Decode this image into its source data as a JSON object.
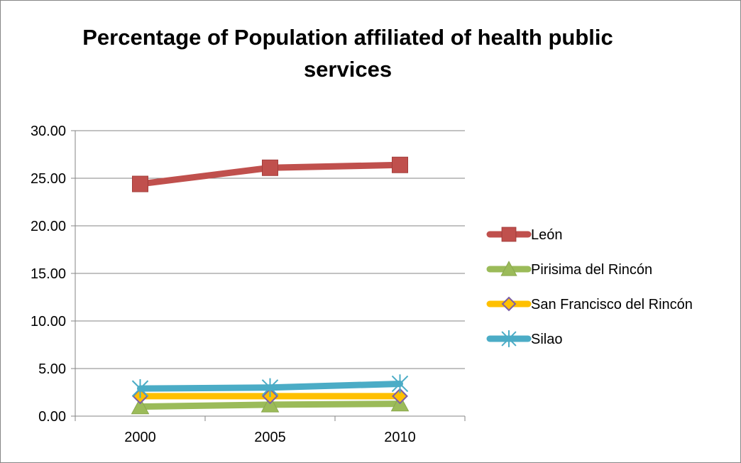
{
  "chart_data": {
    "type": "line",
    "title": "Percentage of Population affiliated of health public services",
    "xlabel": "",
    "ylabel": "",
    "categories": [
      "2000",
      "2005",
      "2010"
    ],
    "ylim": [
      0,
      30
    ],
    "yticks": [
      "0.00",
      "5.00",
      "10.00",
      "15.00",
      "20.00",
      "25.00",
      "30.00"
    ],
    "grid": true,
    "legend_position": "right",
    "series": [
      {
        "name": "León",
        "values": [
          24.4,
          26.1,
          26.4
        ],
        "color": "#c0504d",
        "marker": "square"
      },
      {
        "name": "Pirisima del Rincón",
        "values": [
          1.0,
          1.2,
          1.3
        ],
        "color": "#9bbb59",
        "marker": "triangle"
      },
      {
        "name": "San Francisco del Rincón",
        "values": [
          2.1,
          2.1,
          2.1
        ],
        "color": "#ffc000",
        "marker": "diamond"
      },
      {
        "name": "Silao",
        "values": [
          2.9,
          3.0,
          3.4
        ],
        "color": "#4bacc6",
        "marker": "star"
      }
    ]
  }
}
